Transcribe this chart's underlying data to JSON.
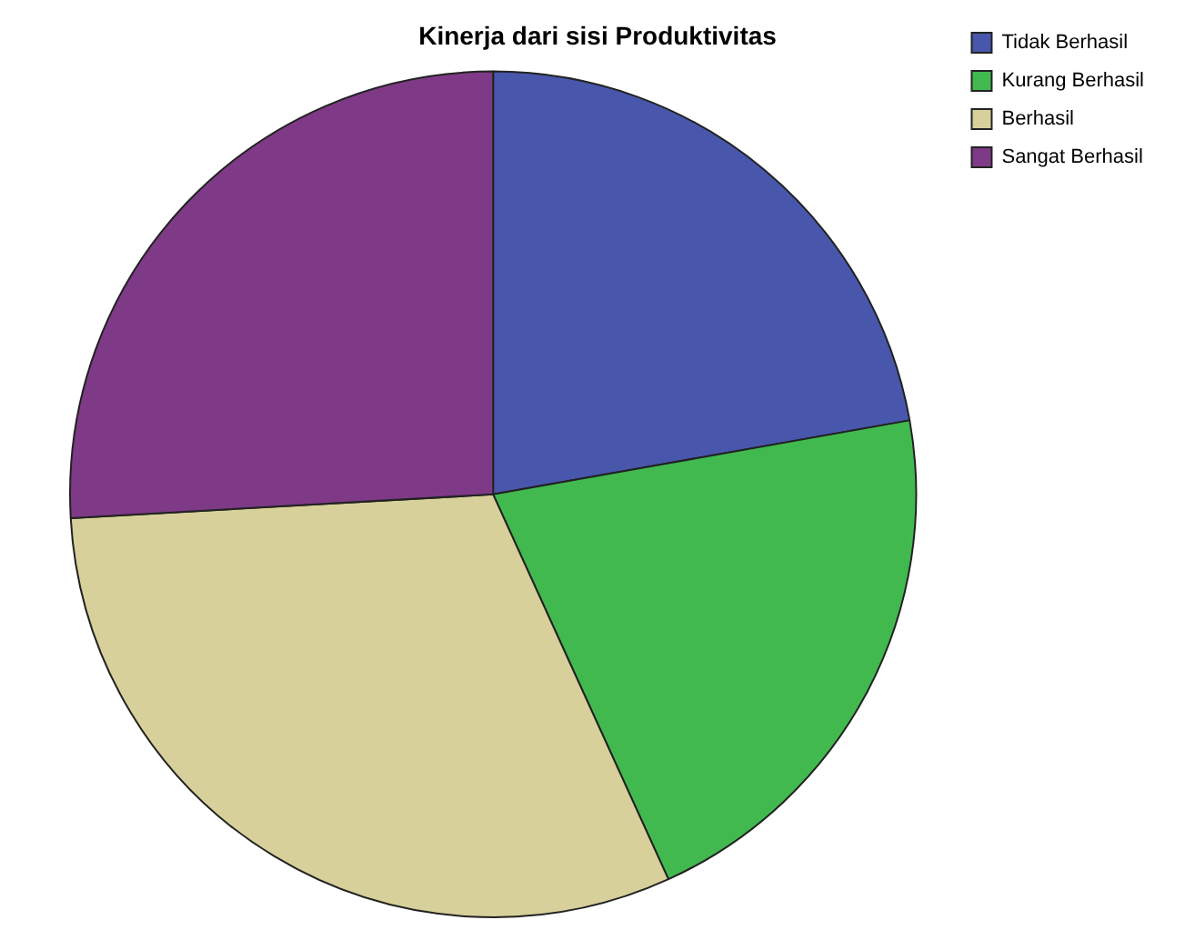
{
  "chart_data": {
    "type": "pie",
    "title": "Kinerja dari sisi Produktivitas",
    "categories": [
      "Tidak Berhasil",
      "Kurang Berhasil",
      "Berhasil",
      "Sangat Berhasil"
    ],
    "values": [
      22.2,
      21.0,
      30.9,
      25.9
    ],
    "colors": [
      "#4857ab",
      "#41b94f",
      "#d7d09a",
      "#7e3a86"
    ],
    "legend": "top right"
  }
}
